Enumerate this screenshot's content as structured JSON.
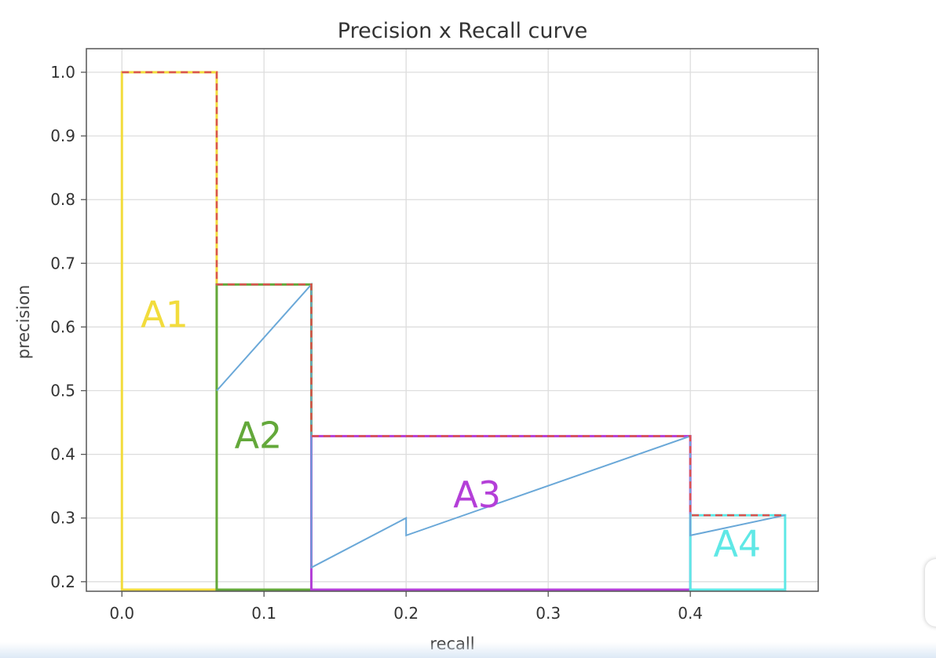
{
  "chart_data": {
    "type": "line",
    "title": "Precision x Recall curve",
    "xlabel": "recall",
    "ylabel": "precision",
    "xlim": [
      -0.025,
      0.49
    ],
    "ylim": [
      0.185,
      1.037
    ],
    "xticks": [
      0.0,
      0.1,
      0.2,
      0.3,
      0.4
    ],
    "xtick_labels": [
      "0.0",
      "0.1",
      "0.2",
      "0.3",
      "0.4"
    ],
    "yticks": [
      0.2,
      0.3,
      0.4,
      0.5,
      0.6,
      0.7,
      0.8,
      0.9,
      1.0
    ],
    "ytick_labels": [
      "0.2",
      "0.3",
      "0.4",
      "0.5",
      "0.6",
      "0.7",
      "0.8",
      "0.9",
      "1.0"
    ],
    "grid": true,
    "series": [
      {
        "style": "solid",
        "color": "#6aa8d8",
        "x": [
          0.0667,
          0.1333,
          0.1333,
          0.2,
          0.2,
          0.4,
          0.4,
          0.4667
        ],
        "y": [
          0.5,
          0.6667,
          0.2222,
          0.3,
          0.2727,
          0.4286,
          0.2727,
          0.3043
        ]
      },
      {
        "style": "dashed",
        "color": "#d9534f",
        "x": [
          0.0,
          0.0667,
          0.0667,
          0.1333,
          0.1333,
          0.4,
          0.4,
          0.4667
        ],
        "y": [
          1.0,
          1.0,
          0.6667,
          0.6667,
          0.4286,
          0.4286,
          0.3043,
          0.3043
        ]
      }
    ],
    "regions": [
      {
        "label": "A1",
        "x0": 0.0,
        "x1": 0.0667,
        "y": 1.0,
        "color": "#f2dc3c",
        "label_x": 0.03,
        "label_y": 0.6
      },
      {
        "label": "A2",
        "x0": 0.0667,
        "x1": 0.1333,
        "y": 0.6667,
        "color": "#63a83a",
        "label_x": 0.096,
        "label_y": 0.41
      },
      {
        "label": "A3",
        "x0": 0.1333,
        "x1": 0.4,
        "y": 0.4286,
        "color": "#b43fd8",
        "label_x": 0.25,
        "label_y": 0.317
      },
      {
        "label": "A4",
        "x0": 0.4,
        "x1": 0.4667,
        "y": 0.3043,
        "color": "#5fe8e6",
        "label_x": 0.433,
        "label_y": 0.24
      }
    ]
  }
}
